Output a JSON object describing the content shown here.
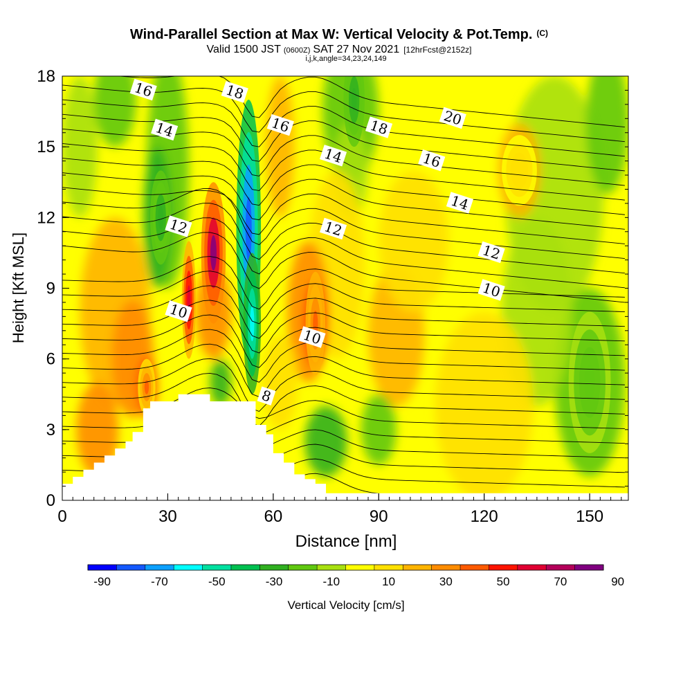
{
  "chart_data": {
    "type": "heatmap",
    "title": "Wind-Parallel Section at Max W: Vertical Velocity & Pot.Temp.",
    "title_mark": "(C)",
    "subtitle_valid": "Valid 1500 JST",
    "subtitle_utc": "(0600Z)",
    "subtitle_date": "SAT 27 Nov 2021",
    "subtitle_fcst": "[12hrFcst@2152z]",
    "subtitle_ijk": "i,j,k,angle=34,23,24,149",
    "xlabel": "Distance [nm]",
    "ylabel": "Height [Kft MSL]",
    "xlim": [
      0,
      161
    ],
    "ylim": [
      0,
      18
    ],
    "xticks": [
      0,
      30,
      60,
      90,
      120,
      150
    ],
    "yticks": [
      0,
      3,
      6,
      9,
      12,
      15,
      18
    ],
    "colorbar_label": "Vertical Velocity [cm/s]",
    "colorbar_ticks": [
      "-90",
      "-70",
      "-50",
      "-30",
      "-10",
      "10",
      "30",
      "50",
      "70",
      "90"
    ],
    "colorbar_colors": [
      "#0000ff",
      "#1458ff",
      "#0ca0ff",
      "#00ffff",
      "#00e0a0",
      "#00c050",
      "#30b020",
      "#60c810",
      "#a8e010",
      "#ffff00",
      "#ffe000",
      "#ffb400",
      "#ff8c00",
      "#ff5a00",
      "#ff1400",
      "#e00032",
      "#b4005a",
      "#800080"
    ],
    "velocity_cores": [
      {
        "x": 53,
        "y": 11.5,
        "value": -80
      },
      {
        "x": 54,
        "y": 7.5,
        "value": -60
      },
      {
        "x": 43,
        "y": 10.5,
        "value": 85
      },
      {
        "x": 36,
        "y": 8.5,
        "value": 70
      },
      {
        "x": 72,
        "y": 7.5,
        "value": 50
      },
      {
        "x": 24,
        "y": 4.8,
        "value": 45
      },
      {
        "x": 28,
        "y": 12.0,
        "value": -30
      },
      {
        "x": 83,
        "y": 17.0,
        "value": -30
      },
      {
        "x": 150,
        "y": 5.0,
        "value": -20
      },
      {
        "x": 130,
        "y": 14.0,
        "value": 20
      }
    ],
    "contour_labels": [
      {
        "text": "16",
        "x": 23,
        "y": 17.4
      },
      {
        "text": "14",
        "x": 29,
        "y": 15.7
      },
      {
        "text": "12",
        "x": 33,
        "y": 11.6
      },
      {
        "text": "10",
        "x": 33,
        "y": 8.0
      },
      {
        "text": "18",
        "x": 49,
        "y": 17.3
      },
      {
        "text": "16",
        "x": 62,
        "y": 15.9
      },
      {
        "text": "14",
        "x": 77,
        "y": 14.6
      },
      {
        "text": "12",
        "x": 77,
        "y": 11.5
      },
      {
        "text": "10",
        "x": 71,
        "y": 6.9
      },
      {
        "text": "8",
        "x": 58,
        "y": 4.4
      },
      {
        "text": "18",
        "x": 90,
        "y": 15.8
      },
      {
        "text": "20",
        "x": 111,
        "y": 16.2
      },
      {
        "text": "16",
        "x": 105,
        "y": 14.4
      },
      {
        "text": "14",
        "x": 113,
        "y": 12.6
      },
      {
        "text": "12",
        "x": 122,
        "y": 10.5
      },
      {
        "text": "10",
        "x": 122,
        "y": 8.9
      }
    ],
    "terrain": [
      [
        0,
        0.7
      ],
      [
        3,
        0.7
      ],
      [
        3,
        1.0
      ],
      [
        6,
        1.0
      ],
      [
        6,
        1.3
      ],
      [
        9,
        1.3
      ],
      [
        9,
        1.6
      ],
      [
        12,
        1.6
      ],
      [
        12,
        1.9
      ],
      [
        15,
        1.9
      ],
      [
        15,
        2.2
      ],
      [
        18,
        2.2
      ],
      [
        18,
        2.5
      ],
      [
        20,
        2.5
      ],
      [
        20,
        2.9
      ],
      [
        23,
        2.9
      ],
      [
        23,
        3.9
      ],
      [
        25,
        3.9
      ],
      [
        25,
        4.2
      ],
      [
        33,
        4.2
      ],
      [
        33,
        4.5
      ],
      [
        42,
        4.5
      ],
      [
        42,
        4.2
      ],
      [
        55,
        4.2
      ],
      [
        55,
        3.2
      ],
      [
        58,
        3.2
      ],
      [
        58,
        2.8
      ],
      [
        60,
        2.8
      ],
      [
        60,
        2.0
      ],
      [
        63,
        2.0
      ],
      [
        63,
        1.6
      ],
      [
        66,
        1.6
      ],
      [
        66,
        1.1
      ],
      [
        69,
        1.1
      ],
      [
        69,
        0.9
      ],
      [
        72,
        0.9
      ],
      [
        72,
        0.7
      ],
      [
        75,
        0.7
      ],
      [
        75,
        0.3
      ],
      [
        161,
        0.3
      ]
    ]
  }
}
